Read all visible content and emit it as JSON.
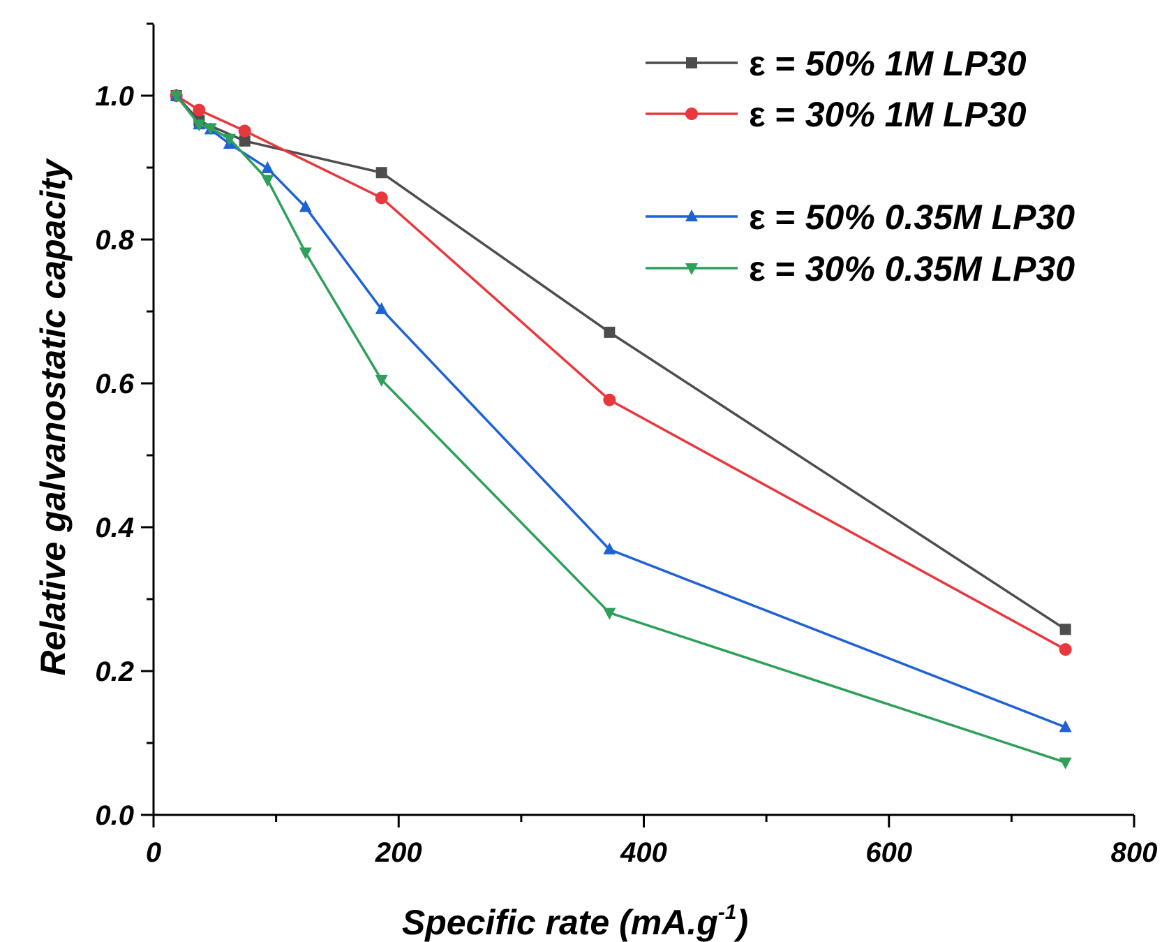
{
  "chart_data": {
    "type": "line",
    "xlabel_main": "Specific rate (mA.g",
    "xlabel_sup": "-1",
    "xlabel_close": ")",
    "ylabel": "Relative galvanostatic capacity",
    "xlim": [
      0,
      800
    ],
    "ylim": [
      0,
      1.1
    ],
    "xticks": [
      "0",
      "200",
      "400",
      "600",
      "800"
    ],
    "yticks": [
      "0.0",
      "0.2",
      "0.4",
      "0.6",
      "0.8",
      "1.0"
    ],
    "xtick_values": [
      0,
      200,
      400,
      600,
      800
    ],
    "ytick_values": [
      0,
      0.2,
      0.4,
      0.6,
      0.8,
      1.0
    ],
    "xminor_values": [
      100,
      300,
      500,
      700
    ],
    "yminor_values": [
      0.1,
      0.3,
      0.5,
      0.7,
      0.9,
      1.1
    ],
    "grid": false,
    "legend_position": "top-right",
    "series": [
      {
        "name": "ε = 50% 1M LP30",
        "eps": "ε =",
        "label": "50% 1M LP30",
        "color": "#4d4d4d",
        "marker": "square",
        "x": [
          18.6,
          37.2,
          74.4,
          186,
          372,
          744
        ],
        "y": [
          1.0,
          0.965,
          0.937,
          0.893,
          0.671,
          0.258
        ]
      },
      {
        "name": "ε = 30% 1M LP30",
        "eps": "ε =",
        "label": "30% 1M LP30",
        "color": "#e8383d",
        "marker": "circle",
        "x": [
          18.6,
          37.2,
          74.4,
          186,
          372,
          744
        ],
        "y": [
          1.0,
          0.98,
          0.951,
          0.858,
          0.577,
          0.23
        ]
      },
      {
        "name": "ε = 50% 0.35M LP30",
        "eps": "ε =",
        "label": "50% 0.35M LP30",
        "color": "#1f62d4",
        "marker": "triangle-up",
        "x": [
          18.6,
          37.2,
          46.5,
          62,
          93,
          124,
          186,
          372,
          744
        ],
        "y": [
          1.0,
          0.96,
          0.953,
          0.933,
          0.899,
          0.845,
          0.703,
          0.369,
          0.122
        ]
      },
      {
        "name": "ε = 30% 0.35M LP30",
        "eps": "ε =",
        "label": "30% 0.35M LP30",
        "color": "#2ea05a",
        "marker": "triangle-down",
        "x": [
          18.6,
          37.2,
          46.5,
          62,
          93,
          124,
          186,
          372,
          744
        ],
        "y": [
          1.0,
          0.96,
          0.955,
          0.94,
          0.883,
          0.782,
          0.605,
          0.281,
          0.073
        ]
      }
    ]
  }
}
